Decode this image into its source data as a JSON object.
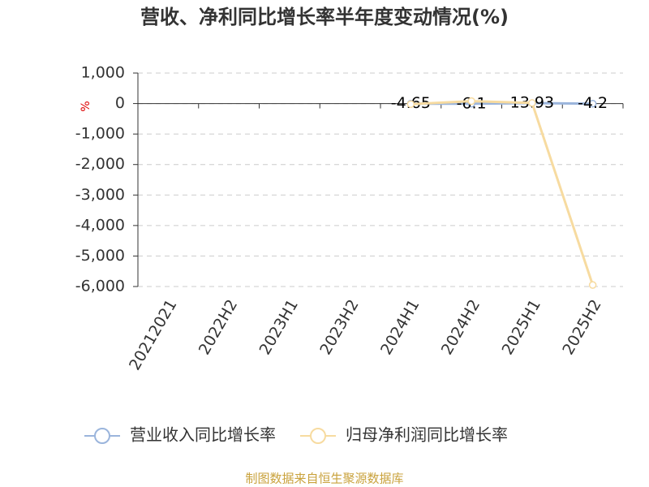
{
  "chart_data": {
    "type": "line",
    "title": "营收、净利同比增长率半年度变动情况(%)",
    "ylabel": "%",
    "categories": [
      "20212021",
      "2022H2",
      "2023H1",
      "2023H2",
      "2024H1",
      "2024H2",
      "2025H1",
      "2025H2"
    ],
    "series": [
      {
        "name": "营业收入同比增长率",
        "color": "#9bb5dc",
        "values": [
          null,
          null,
          null,
          null,
          -4.65,
          -6.1,
          13.93,
          -4.2
        ],
        "labels": true
      },
      {
        "name": "归母净利润同比增长率",
        "color": "#f7dba0",
        "values": [
          null,
          null,
          null,
          null,
          -20,
          80,
          20,
          -5950
        ],
        "labels": false
      }
    ],
    "ylim": [
      -6000,
      1000
    ],
    "yticks": [
      {
        "value": 1000,
        "label": "1,000"
      },
      0,
      {
        "value": -1000,
        "label": "-1,000"
      },
      {
        "value": -2000,
        "label": "-2,000"
      },
      {
        "value": -3000,
        "label": "-3,000"
      },
      {
        "value": -4000,
        "label": "-4,000"
      },
      {
        "value": -5000,
        "label": "-5,000"
      },
      {
        "value": -6000,
        "label": "-6,000"
      }
    ],
    "grid": true,
    "source": "制图数据来自恒生聚源数据库"
  }
}
